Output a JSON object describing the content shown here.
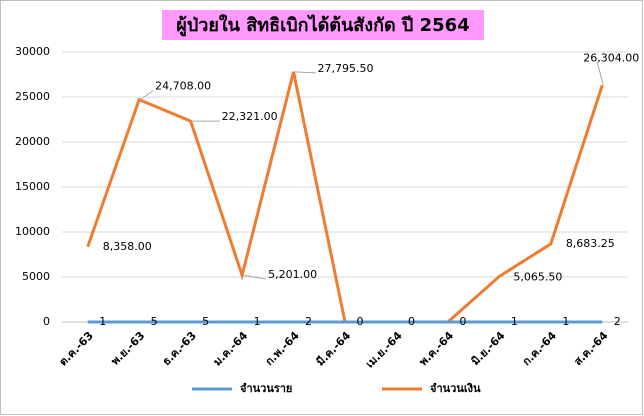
{
  "chart_data": {
    "type": "line",
    "title": "ผู้ป่วยใน สิทธิเบิกได้ต้นสังกัด ปี 2564",
    "categories": [
      "ต.ค.-63",
      "พ.ย.-63",
      "ธ.ค.-63",
      "ม.ค.-64",
      "ก.พ.-64",
      "มี.ค.-64",
      "เม.ย.-64",
      "พ.ค.-64",
      "มิ.ย.-64",
      "ก.ค.-64",
      "ส.ค.-64"
    ],
    "series": [
      {
        "name": "จำนวนราย",
        "color": "#5b9bd5",
        "values": [
          1,
          5,
          5,
          1,
          2,
          0,
          0,
          0,
          1,
          1,
          2
        ]
      },
      {
        "name": "จำนวนเงิน",
        "color": "#ed7d31",
        "values": [
          8358,
          24708,
          22321,
          5201,
          27795.5,
          0,
          0,
          0,
          5065.5,
          8683.25,
          26304
        ],
        "value_labels": [
          "8,358.00",
          "24,708.00",
          "22,321.00",
          "5,201.00",
          "27,795.50",
          null,
          null,
          null,
          "5,065.50",
          "8,683.25",
          "26,304.00"
        ]
      }
    ],
    "ylim": [
      0,
      30000
    ],
    "yticks": [
      0,
      5000,
      10000,
      15000,
      20000,
      25000,
      30000
    ],
    "grid": true,
    "legend": "bottom"
  }
}
